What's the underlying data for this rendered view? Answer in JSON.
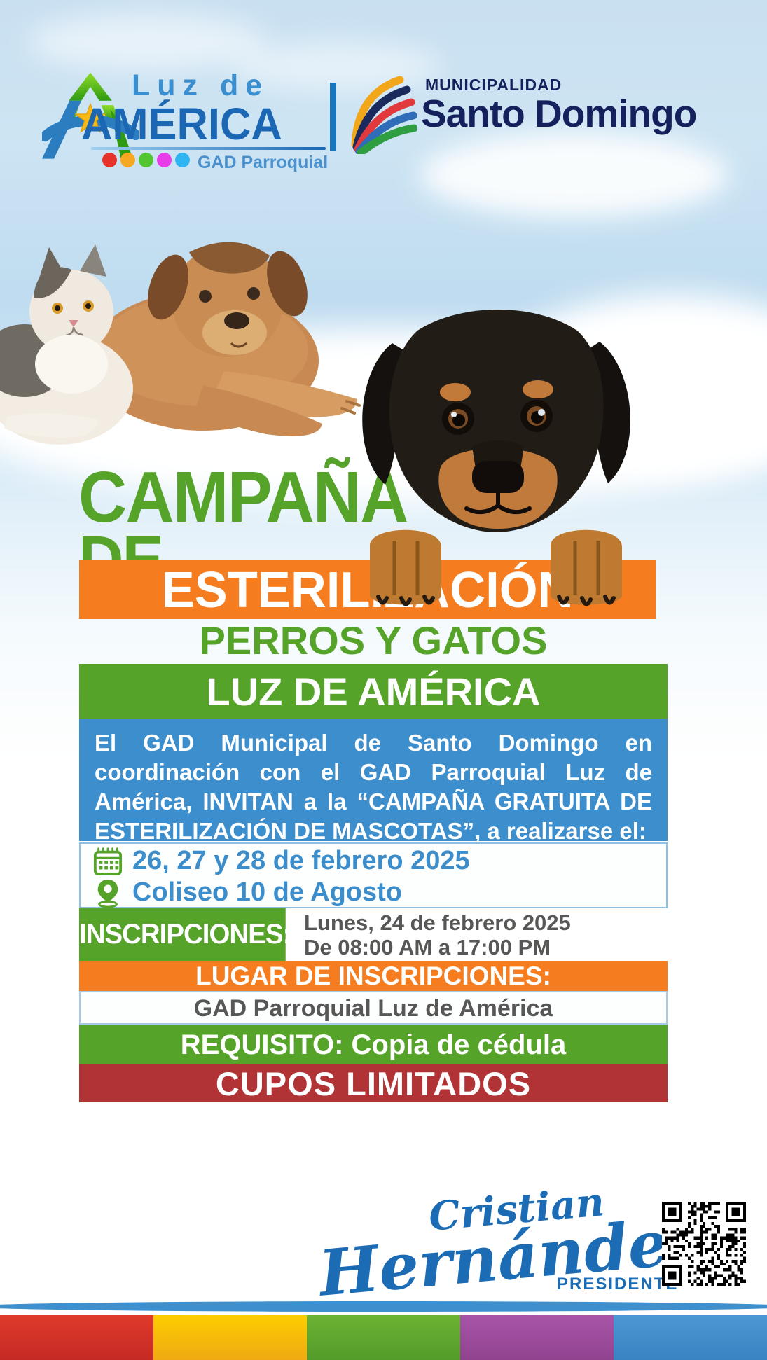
{
  "header": {
    "luz": {
      "line1": "Luz de",
      "line2": "AMÉRICA",
      "tagline": "GAD Parroquial"
    },
    "muni": {
      "label": "MUNICIPALIDAD",
      "name": "Santo Domingo"
    }
  },
  "title": {
    "line1": "CAMPAÑA",
    "line2": "DE"
  },
  "banners": {
    "esterilizacion": "ESTERILIZACIÓN",
    "perros_gatos": "PERROS Y GATOS",
    "luz_america": "LUZ DE AMÉRICA"
  },
  "invitation": "El GAD Municipal de Santo Domingo en coordinación con el GAD Parroquial Luz de América, INVITAN a la “CAMPAÑA GRATUITA DE ESTERILIZACIÓN DE MASCOTAS”, a realizarse el:",
  "event": {
    "dates": "26, 27 y 28 de febrero 2025",
    "venue": "Coliseo 10 de Agosto"
  },
  "inscriptions": {
    "label": "INSCRIPCIONES:",
    "date": "Lunes, 24 de febrero 2025",
    "hours": "De 08:00 AM a 17:00 PM"
  },
  "lugar": {
    "label": "LUGAR DE INSCRIPCIONES:",
    "value": "GAD Parroquial Luz de América"
  },
  "requisito": "REQUISITO: Copia de cédula",
  "cupos": "CUPOS LIMITADOS",
  "signature": {
    "first": "Cristian",
    "last": "Hernández",
    "role": "PRESIDENTE"
  },
  "icons": {
    "calendar": "calendar-icon",
    "location": "location-pin-icon",
    "qr": "qr-code"
  },
  "colors": {
    "green": "#56a32a",
    "orange": "#f57d1f",
    "blue_block": "#3d8ecd",
    "blue_text": "#3b8ecb",
    "red_band": "#b13335",
    "navy": "#14215c",
    "logo_blue": "#1b67b4",
    "gray_text": "#575756",
    "stripe": [
      "#d8342b",
      "#f6c504",
      "#5ca02f",
      "#9c4f9e",
      "#4190cf"
    ]
  }
}
